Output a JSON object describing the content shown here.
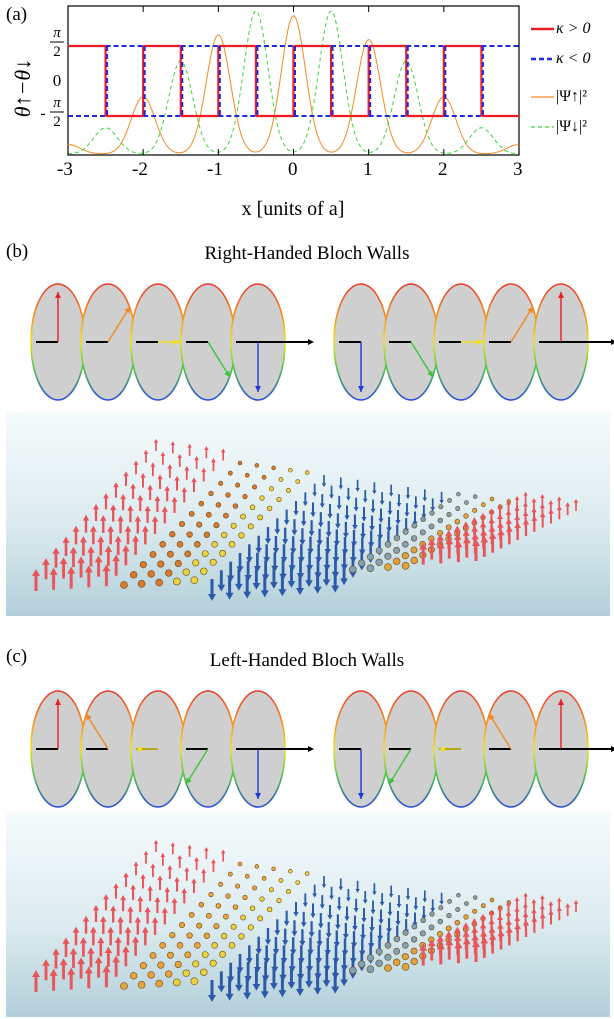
{
  "panels": {
    "a": {
      "letter": "(a)",
      "ylabel": "θ↑−θ↓",
      "yticks": [
        "π/2",
        "0",
        "-π/2"
      ],
      "xticks": [
        "-3",
        "-2",
        "-1",
        "0",
        "1",
        "2",
        "3"
      ],
      "xlabel": "x [units of a]",
      "legend": [
        {
          "label": "κ > 0",
          "color": "#ee1c25",
          "style": "solid"
        },
        {
          "label": "κ < 0",
          "color": "#1f2bd8",
          "style": "dashed"
        },
        {
          "label": "|Ψ↑|²",
          "color": "#f08a24",
          "style": "solid"
        },
        {
          "label": "|Ψ↓|²",
          "color": "#3ad63a",
          "style": "dashed"
        }
      ]
    },
    "b": {
      "letter": "(b)",
      "title": "Right-Handed Bloch Walls",
      "left_angles": [
        0,
        45,
        90,
        135,
        180
      ],
      "right_angles": [
        180,
        135,
        90,
        45,
        0
      ]
    },
    "c": {
      "letter": "(c)",
      "title": "Left-Handed Bloch Walls",
      "left_angles": [
        0,
        45,
        90,
        135,
        180
      ],
      "right_angles": [
        180,
        135,
        90,
        45,
        0
      ]
    }
  },
  "chart_data": {
    "type": "line",
    "x": [
      -3,
      -2.5,
      -2,
      -1.5,
      -1,
      -0.5,
      0,
      0.5,
      1,
      1.5,
      2,
      2.5,
      3
    ],
    "xlim": [
      -3,
      3
    ],
    "ylim": [
      -2.2,
      2.2
    ],
    "series": [
      {
        "name": "κ > 0",
        "values": [
          -1.5708,
          1.5708,
          -1.5708,
          1.5708,
          -1.5708,
          1.5708,
          -1.5708,
          1.5708,
          -1.5708,
          1.5708,
          -1.5708,
          1.5708,
          -1.5708
        ]
      },
      {
        "name": "κ < 0",
        "values": [
          -1.5708,
          1.5708,
          -1.5708,
          1.5708,
          -1.5708,
          1.5708,
          -1.5708,
          1.5708,
          -1.5708,
          1.5708,
          -1.5708,
          1.5708,
          -1.5708
        ]
      },
      {
        "name": "|Ψ↑|²",
        "peaks": [
          -3,
          -2,
          -1,
          0,
          1,
          2,
          3
        ],
        "peak_values": [
          0.2,
          1.2,
          2.5,
          2.9,
          2.4,
          1.2,
          0.2
        ]
      },
      {
        "name": "|Ψ↓|²",
        "peaks": [
          -2.5,
          -1.5,
          -0.5,
          0.5,
          1.5,
          2.5
        ],
        "peak_values": [
          0.55,
          1.95,
          3.0,
          3.0,
          1.95,
          0.55
        ]
      }
    ]
  }
}
